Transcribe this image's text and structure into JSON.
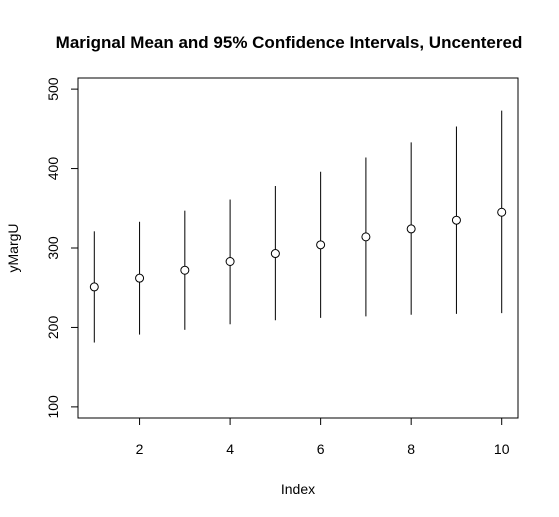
{
  "chart_data": {
    "type": "scatter",
    "title": "Marignal Mean and 95% Confidence Intervals, Uncentered",
    "xlabel": "Index",
    "ylabel": "yMargU",
    "xlim": [
      0.64,
      10.36
    ],
    "ylim": [
      86,
      514
    ],
    "x_ticks": [
      2,
      4,
      6,
      8,
      10
    ],
    "y_ticks": [
      100,
      200,
      300,
      400,
      500
    ],
    "grid": false,
    "legend": "none",
    "points": [
      {
        "x": 1,
        "y": 251,
        "lower": 181,
        "upper": 321
      },
      {
        "x": 2,
        "y": 262,
        "lower": 191,
        "upper": 333
      },
      {
        "x": 3,
        "y": 272,
        "lower": 197,
        "upper": 347
      },
      {
        "x": 4,
        "y": 283,
        "lower": 204,
        "upper": 361
      },
      {
        "x": 5,
        "y": 293,
        "lower": 209,
        "upper": 378
      },
      {
        "x": 6,
        "y": 304,
        "lower": 212,
        "upper": 396
      },
      {
        "x": 7,
        "y": 314,
        "lower": 214,
        "upper": 414
      },
      {
        "x": 8,
        "y": 324,
        "lower": 216,
        "upper": 433
      },
      {
        "x": 9,
        "y": 335,
        "lower": 217,
        "upper": 453
      },
      {
        "x": 10,
        "y": 345,
        "lower": 218,
        "upper": 473
      }
    ],
    "colors": {
      "marks": "#000000",
      "background": "#ffffff"
    }
  }
}
